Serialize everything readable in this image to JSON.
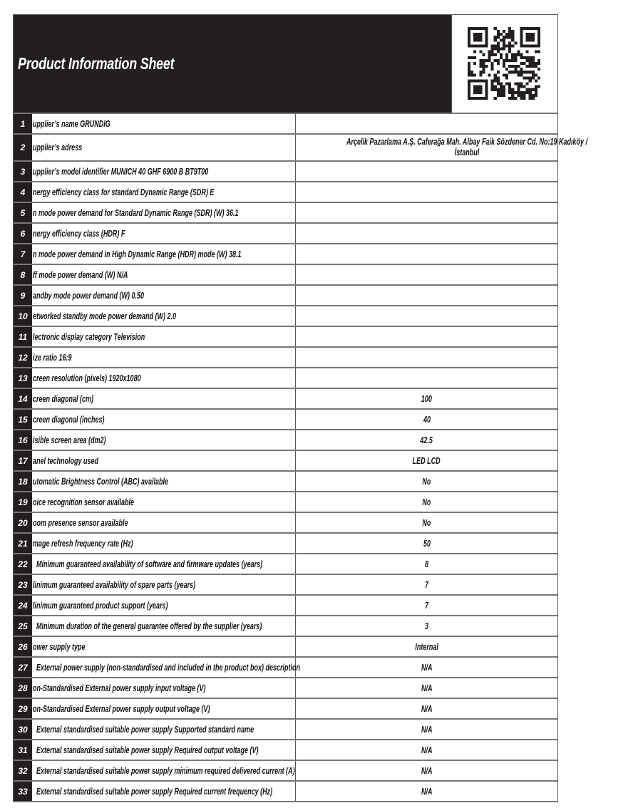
{
  "header": {
    "title": "Product Information Sheet",
    "qr_icon": "qr-code"
  },
  "colors": {
    "header_bg": "#231f20",
    "text": "#111111"
  },
  "rows": [
    {
      "num": "1",
      "label": "upplier’s name  GRUNDIG",
      "value": ""
    },
    {
      "num": "2",
      "label": "upplier’s adress",
      "value": "Arçelik Pazarlama A.Ş. Caferağa Mah. Albay Faik Sözdener Cd. No:19 Kadıköy / İstanbul"
    },
    {
      "num": "3",
      "label": "upplier’s model identifier MUNICH 40 GHF 6900 B BT9T00",
      "value": ""
    },
    {
      "num": "4",
      "label": "nergy efficiency class for standard Dynamic Range (SDR) E",
      "value": ""
    },
    {
      "num": "5",
      "label": "n mode power demand for Standard Dynamic Range (SDR) (W) 36.1",
      "value": ""
    },
    {
      "num": "6",
      "label": "nergy efficiency class (HDR) F",
      "value": ""
    },
    {
      "num": "7",
      "label": "n mode power demand in High Dynamic Range (HDR) mode  (W) 38.1",
      "value": ""
    },
    {
      "num": "8",
      "label": "ff mode power demand (W) N/A",
      "value": ""
    },
    {
      "num": "9",
      "label": "andby mode power demand  (W) 0.50",
      "value": ""
    },
    {
      "num": "10",
      "label": "etworked standby mode power demand (W) 2.0",
      "value": ""
    },
    {
      "num": "11",
      "label": "lectronic display category Television",
      "value": ""
    },
    {
      "num": "12",
      "label": "ize ratio 16:9",
      "value": ""
    },
    {
      "num": "13",
      "label": "creen resolution (pixels) 1920x1080",
      "value": ""
    },
    {
      "num": "14",
      "label": "creen diagonal (cm)",
      "value": "100"
    },
    {
      "num": "15",
      "label": "creen diagonal (inches)",
      "value": "40"
    },
    {
      "num": "16",
      "label": "isible screen area (dm2)",
      "value": "42.5"
    },
    {
      "num": "17",
      "label": "anel technology used",
      "value": "LED LCD"
    },
    {
      "num": "18",
      "label": "utomatic Brightness Control (ABC) available",
      "value": "No"
    },
    {
      "num": "19",
      "label": "oice recognition sensor available",
      "value": "No"
    },
    {
      "num": "20",
      "label": "oom presence sensor available",
      "value": "No"
    },
    {
      "num": "21",
      "label": "mage refresh frequency rate (Hz)",
      "value": "50"
    },
    {
      "num": "22",
      "label": "Minimum guaranteed availability of software and firmware updates (years)",
      "value": "8",
      "indent": true
    },
    {
      "num": "23",
      "label": "linimum guaranteed availability of spare parts (years)",
      "value": "7"
    },
    {
      "num": "24",
      "label": "linimum guaranteed product support (years)",
      "value": "7"
    },
    {
      "num": "25",
      "label": "Minimum duration of the general guarantee offered by the supplier (years)",
      "value": "3",
      "indent": true
    },
    {
      "num": "26",
      "label": "ower supply type",
      "value": "Internal"
    },
    {
      "num": "27",
      "label": "External power supply (non-standardised and included in the product box) description",
      "value": "N/A",
      "indent": true
    },
    {
      "num": "28",
      "label": "on-Standardised External power supply input voltage (V)",
      "value": "N/A"
    },
    {
      "num": "29",
      "label": "on-Standardised External power supply output voltage (V)",
      "value": "N/A"
    },
    {
      "num": "30",
      "label": "External standardised suitable power supply Supported standard name",
      "value": "N/A",
      "indent": true
    },
    {
      "num": "31",
      "label": "External standardised suitable power supply Required output voltage (V)",
      "value": "N/A",
      "indent": true
    },
    {
      "num": "32",
      "label": "External standardised suitable  power supply minimum required delivered current  (A)",
      "value": "N/A",
      "indent": true
    },
    {
      "num": "33",
      "label": "External standardised suitable power supply Required current frequency (Hz)",
      "value": "N/A",
      "indent": true
    }
  ]
}
